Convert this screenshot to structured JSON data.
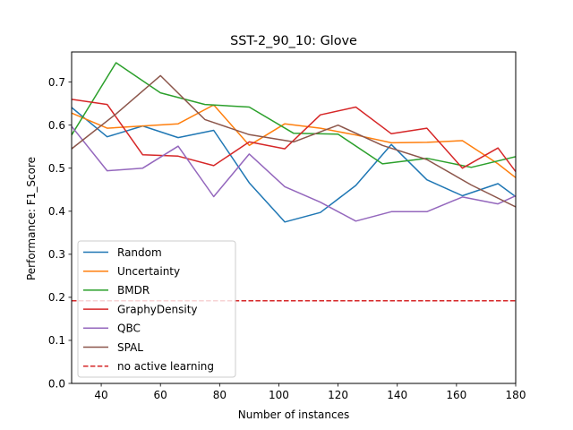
{
  "chart_data": {
    "type": "line",
    "title": "SST-2_90_10: Glove",
    "xlabel": "Number of instances",
    "ylabel": "Performance: F1_Score",
    "xlim": [
      30,
      180
    ],
    "ylim": [
      0.0,
      0.77
    ],
    "xticks": [
      40,
      60,
      80,
      100,
      120,
      140,
      160,
      180
    ],
    "yticks": [
      0.0,
      0.1,
      0.2,
      0.3,
      0.4,
      0.5,
      0.6,
      0.7
    ],
    "legend_position": "lower-left",
    "series": [
      {
        "name": "Random",
        "color": "#1f77b4",
        "x": [
          30,
          42,
          54,
          66,
          78,
          90,
          102,
          114,
          126,
          138,
          150,
          162,
          174,
          180
        ],
        "y": [
          0.641,
          0.573,
          0.598,
          0.571,
          0.588,
          0.466,
          0.375,
          0.397,
          0.46,
          0.555,
          0.473,
          0.436,
          0.464,
          0.434
        ]
      },
      {
        "name": "Uncertainty",
        "color": "#ff7f0e",
        "x": [
          30,
          42,
          54,
          66,
          78,
          90,
          102,
          114,
          126,
          138,
          150,
          162,
          174,
          180
        ],
        "y": [
          0.628,
          0.593,
          0.598,
          0.603,
          0.647,
          0.553,
          0.603,
          0.593,
          0.577,
          0.559,
          0.56,
          0.564,
          0.51,
          0.478
        ]
      },
      {
        "name": "BMDR",
        "color": "#2ca02c",
        "x": [
          30,
          45,
          60,
          75,
          90,
          105,
          120,
          135,
          150,
          165,
          180
        ],
        "y": [
          0.577,
          0.745,
          0.675,
          0.648,
          0.642,
          0.581,
          0.579,
          0.51,
          0.523,
          0.502,
          0.527
        ]
      },
      {
        "name": "GraphyDensity",
        "color": "#d62728",
        "x": [
          30,
          42,
          54,
          66,
          78,
          90,
          102,
          114,
          126,
          138,
          150,
          162,
          174,
          180
        ],
        "y": [
          0.66,
          0.648,
          0.531,
          0.528,
          0.506,
          0.561,
          0.545,
          0.624,
          0.642,
          0.58,
          0.593,
          0.5,
          0.547,
          0.492
        ]
      },
      {
        "name": "QBC",
        "color": "#9467bd",
        "x": [
          30,
          42,
          54,
          66,
          78,
          90,
          102,
          114,
          126,
          138,
          150,
          162,
          174,
          180
        ],
        "y": [
          0.597,
          0.494,
          0.5,
          0.551,
          0.434,
          0.533,
          0.457,
          0.421,
          0.377,
          0.399,
          0.399,
          0.433,
          0.417,
          0.436
        ]
      },
      {
        "name": "SPAL",
        "color": "#8c564b",
        "x": [
          30,
          45,
          60,
          75,
          90,
          105,
          120,
          135,
          150,
          165,
          180
        ],
        "y": [
          0.545,
          0.626,
          0.715,
          0.613,
          0.578,
          0.561,
          0.6,
          0.553,
          0.52,
          0.461,
          0.41
        ]
      },
      {
        "name": "no active learning",
        "color": "#d62728",
        "dashed": true,
        "x": [
          30,
          180
        ],
        "y": [
          0.192,
          0.192
        ]
      }
    ]
  }
}
